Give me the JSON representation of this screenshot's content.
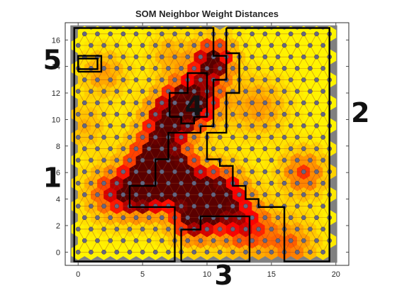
{
  "chart_data": {
    "type": "heatmap",
    "title": "SOM Neighbor Weight Distances",
    "xlabel": "",
    "ylabel": "",
    "xlim": [
      -1,
      21
    ],
    "ylim": [
      -1,
      17.3
    ],
    "xticks": [
      "0",
      "5",
      "10",
      "15",
      "20"
    ],
    "xtick_values": [
      0,
      5,
      10,
      15,
      20
    ],
    "yticks": [
      "0",
      "2",
      "4",
      "6",
      "8",
      "10",
      "12",
      "14",
      "16"
    ],
    "ytick_values": [
      0,
      2,
      4,
      6,
      8,
      10,
      12,
      14,
      16
    ],
    "grid": {
      "columns": 20,
      "rows": 20,
      "row_spacing": 0.866,
      "odd_row_offset": 0.5
    },
    "distance_hotspots": [
      {
        "x": 10.5,
        "y": 14.5,
        "strength": 1.0,
        "spread": 1.1
      },
      {
        "x": 9.0,
        "y": 11.5,
        "strength": 1.0,
        "spread": 1.5
      },
      {
        "x": 7.0,
        "y": 10.0,
        "strength": 0.9,
        "spread": 1.3
      },
      {
        "x": 6.0,
        "y": 7.0,
        "strength": 1.0,
        "spread": 1.4
      },
      {
        "x": 5.0,
        "y": 4.5,
        "strength": 1.0,
        "spread": 1.3
      },
      {
        "x": 8.0,
        "y": 5.5,
        "strength": 0.9,
        "spread": 1.3
      },
      {
        "x": 9.0,
        "y": 2.5,
        "strength": 0.9,
        "spread": 1.3
      },
      {
        "x": 11.0,
        "y": 4.5,
        "strength": 0.9,
        "spread": 1.4
      },
      {
        "x": 13.0,
        "y": 2.0,
        "strength": 0.7,
        "spread": 1.5
      },
      {
        "x": 2.5,
        "y": 4.5,
        "strength": 0.6,
        "spread": 1.4
      },
      {
        "x": 17.5,
        "y": 6.0,
        "strength": 0.6,
        "spread": 1.2
      },
      {
        "x": 14.0,
        "y": 11.0,
        "strength": 0.4,
        "spread": 1.5
      },
      {
        "x": 2.0,
        "y": 13.5,
        "strength": 0.4,
        "spread": 1.2
      },
      {
        "x": 16.5,
        "y": 0.5,
        "strength": 0.5,
        "spread": 1.4
      },
      {
        "x": 0.5,
        "y": 9.5,
        "strength": 0.3,
        "spread": 1.2
      },
      {
        "x": 7.0,
        "y": 15.0,
        "strength": 0.3,
        "spread": 1.0
      }
    ],
    "cluster_boundaries": [
      {
        "label": "1",
        "points": [
          [
            -0.3,
            13
          ],
          [
            -0.3,
            16.9
          ],
          [
            10.5,
            16.9
          ],
          [
            10.5,
            14.8
          ],
          [
            11.5,
            14.8
          ],
          [
            11.5,
            13
          ],
          [
            10.5,
            13
          ],
          [
            10.5,
            9.5
          ],
          [
            9.5,
            9.5
          ],
          [
            9.5,
            9
          ],
          [
            7,
            9
          ],
          [
            7,
            7
          ],
          [
            6,
            7
          ],
          [
            6,
            5
          ],
          [
            4,
            5
          ],
          [
            4,
            3.4
          ],
          [
            7.5,
            3.4
          ],
          [
            7.5,
            -0.7
          ],
          [
            -0.3,
            -0.7
          ],
          [
            -0.3,
            13
          ]
        ]
      },
      {
        "label": "2",
        "points": [
          [
            11.5,
            16.9
          ],
          [
            19.5,
            16.9
          ],
          [
            19.5,
            -0.7
          ],
          [
            16,
            -0.7
          ],
          [
            16,
            3.4
          ],
          [
            14,
            3.4
          ],
          [
            14,
            4
          ],
          [
            13,
            4
          ],
          [
            13,
            5
          ],
          [
            12,
            5
          ],
          [
            12,
            6.5
          ],
          [
            11,
            6.5
          ],
          [
            11,
            7
          ],
          [
            10,
            7
          ],
          [
            10,
            9
          ],
          [
            11.5,
            9
          ],
          [
            11.5,
            12
          ],
          [
            12.5,
            12
          ],
          [
            12.5,
            15
          ],
          [
            11.5,
            15
          ],
          [
            11.5,
            16.9
          ]
        ]
      },
      {
        "label": "3",
        "points": [
          [
            8,
            -0.7
          ],
          [
            13.3,
            -0.7
          ],
          [
            13.3,
            2.7
          ],
          [
            9.5,
            2.7
          ],
          [
            9.5,
            1.7
          ],
          [
            8,
            1.7
          ],
          [
            8,
            -0.7
          ]
        ]
      },
      {
        "label": "4",
        "points": [
          [
            7.1,
            10.2
          ],
          [
            7.1,
            12
          ],
          [
            8.5,
            12
          ],
          [
            8.5,
            13.5
          ],
          [
            10,
            13.5
          ],
          [
            10,
            10.2
          ],
          [
            9,
            10.2
          ],
          [
            9,
            9.7
          ],
          [
            8,
            9.7
          ],
          [
            8,
            10.2
          ],
          [
            7.1,
            10.2
          ]
        ]
      },
      {
        "label": "5",
        "points": [
          [
            0,
            13.6
          ],
          [
            1.8,
            13.6
          ],
          [
            1.8,
            14.8
          ],
          [
            0,
            14.8
          ],
          [
            0,
            13.6
          ]
        ]
      }
    ],
    "inner_box": {
      "points": [
        [
          0,
          13.8
        ],
        [
          1.5,
          13.8
        ],
        [
          1.5,
          14.6
        ],
        [
          0,
          14.6
        ],
        [
          0,
          13.8
        ]
      ]
    },
    "region_labels": [
      {
        "text": "5",
        "x": -2.0,
        "y": 14.5
      },
      {
        "text": "4",
        "x": 9.0,
        "y": 11.0
      },
      {
        "text": "2",
        "x": 21.9,
        "y": 10.5
      },
      {
        "text": "1",
        "x": -2.0,
        "y": 5.6
      },
      {
        "text": "3",
        "x": 11.3,
        "y": -1.75
      }
    ],
    "colors": {
      "background_area": "#808080",
      "low_distance": "#ffff00",
      "mid_distance": "#ff9900",
      "high_distance": "#ff0000",
      "max_distance": "#5a0000",
      "neuron": "#666680",
      "boundary": "#000000"
    }
  }
}
